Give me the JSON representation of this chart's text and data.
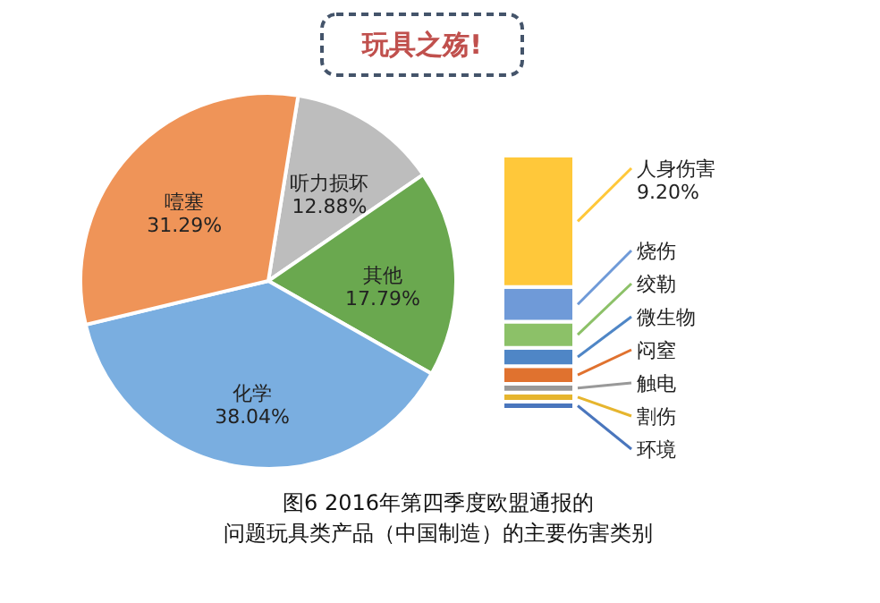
{
  "chart_data": [
    {
      "type": "pie",
      "title": "玩具之殇!",
      "annotations": [
        "图6 2016年第四季度欧盟通报的",
        "问题玩具类产品（中国制造）的主要伤害类别"
      ],
      "categories": [
        "听力损坏",
        "其他",
        "化学",
        "噎塞"
      ],
      "values": [
        12.88,
        17.79,
        38.04,
        31.29
      ],
      "colors": [
        "#bdbdbd",
        "#6aa84f",
        "#7aaee0",
        "#ef9458"
      ],
      "value_labels": [
        "12.88%",
        "17.79%",
        "38.04%",
        "31.29%"
      ]
    },
    {
      "type": "bar",
      "stacked": true,
      "legend": "right",
      "categories": [
        null
      ],
      "series": [
        {
          "name": "环境",
          "color": "#4a76bd",
          "values": [
            0.56
          ]
        },
        {
          "name": "割伤",
          "color": "#e6b52e",
          "values": [
            0.65
          ]
        },
        {
          "name": "触电",
          "color": "#999999",
          "values": [
            0.61
          ]
        },
        {
          "name": "闷窒",
          "color": "#e0722f",
          "values": [
            1.24
          ]
        },
        {
          "name": "微生物",
          "color": "#4f86c6",
          "values": [
            1.28
          ]
        },
        {
          "name": "绞勒",
          "color": "#8cc168",
          "values": [
            1.83
          ]
        },
        {
          "name": "烧伤",
          "color": "#6f9ad8",
          "values": [
            2.42
          ]
        },
        {
          "name": "人身伤害",
          "color": "#ffc83a",
          "values": [
            9.2
          ],
          "value_labels": [
            "9.20%"
          ]
        }
      ]
    }
  ]
}
